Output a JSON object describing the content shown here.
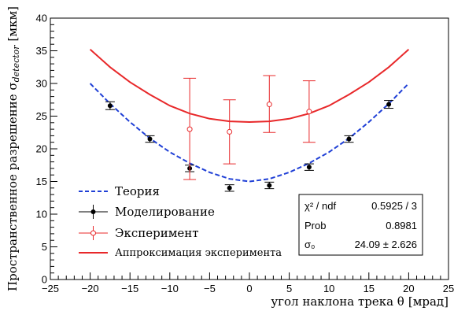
{
  "chart_data": {
    "type": "scatter",
    "xlabel_main": "угол наклона трека θ",
    "xlabel_unit": "[мрад]",
    "ylabel_main": "Пространственное разрешение σ",
    "ylabel_sub": "detector",
    "ylabel_unit": "[мкм]",
    "xlim": [
      -25,
      25
    ],
    "ylim": [
      0,
      40
    ],
    "x_ticks": [
      -25,
      -20,
      -15,
      -10,
      -5,
      0,
      5,
      10,
      15,
      20,
      25
    ],
    "y_ticks": [
      0,
      5,
      10,
      15,
      20,
      25,
      30,
      35,
      40
    ],
    "grid": false,
    "legend_position": "bottom-left",
    "series": [
      {
        "name": "Теория",
        "kind": "curve",
        "style": "dashed",
        "color": "#1f3fd6",
        "x": [
          -20,
          -17.5,
          -15,
          -12.5,
          -10,
          -7.5,
          -5,
          -2.5,
          0,
          2.5,
          5,
          7.5,
          10,
          12.5,
          15,
          17.5,
          20
        ],
        "y": [
          30.0,
          26.9,
          24.1,
          21.6,
          19.5,
          17.8,
          16.4,
          15.4,
          15.0,
          15.4,
          16.4,
          17.8,
          19.5,
          21.6,
          24.1,
          26.9,
          30.0
        ]
      },
      {
        "name": "Моделирование",
        "kind": "points",
        "marker": "filled-circle",
        "color": "#000000",
        "x": [
          -17.5,
          -12.5,
          -7.5,
          -2.5,
          2.5,
          7.5,
          12.5,
          17.5
        ],
        "y": [
          26.6,
          21.5,
          17.0,
          14.0,
          14.4,
          17.2,
          21.5,
          26.8
        ],
        "yerr": [
          0.6,
          0.5,
          0.5,
          0.5,
          0.5,
          0.5,
          0.5,
          0.6
        ]
      },
      {
        "name": "Эксперимент",
        "kind": "points",
        "marker": "open-circle",
        "color": "#e8282a",
        "x": [
          -7.5,
          -2.5,
          2.5,
          7.5
        ],
        "y": [
          23.0,
          22.6,
          26.8,
          25.7
        ],
        "yerr_low": [
          7.7,
          4.9,
          4.3,
          4.7
        ],
        "yerr_high": [
          7.8,
          4.9,
          4.4,
          4.7
        ]
      },
      {
        "name": "Аппроксимация эксперимента",
        "kind": "curve",
        "style": "solid",
        "color": "#e8282a",
        "x": [
          -20,
          -17.5,
          -15,
          -12.5,
          -10,
          -7.5,
          -5,
          -2.5,
          0,
          2.5,
          5,
          7.5,
          10,
          12.5,
          15,
          17.5,
          20
        ],
        "y": [
          35.2,
          32.5,
          30.2,
          28.3,
          26.6,
          25.4,
          24.6,
          24.2,
          24.1,
          24.2,
          24.6,
          25.4,
          26.6,
          28.3,
          30.2,
          32.5,
          35.2
        ]
      }
    ],
    "stats_box": [
      {
        "label": "χ² / ndf",
        "value": "0.5925 / 3"
      },
      {
        "label": "Prob",
        "value": "0.8981"
      },
      {
        "label": "σ₀",
        "value": "24.09 ± 2.626"
      }
    ]
  }
}
